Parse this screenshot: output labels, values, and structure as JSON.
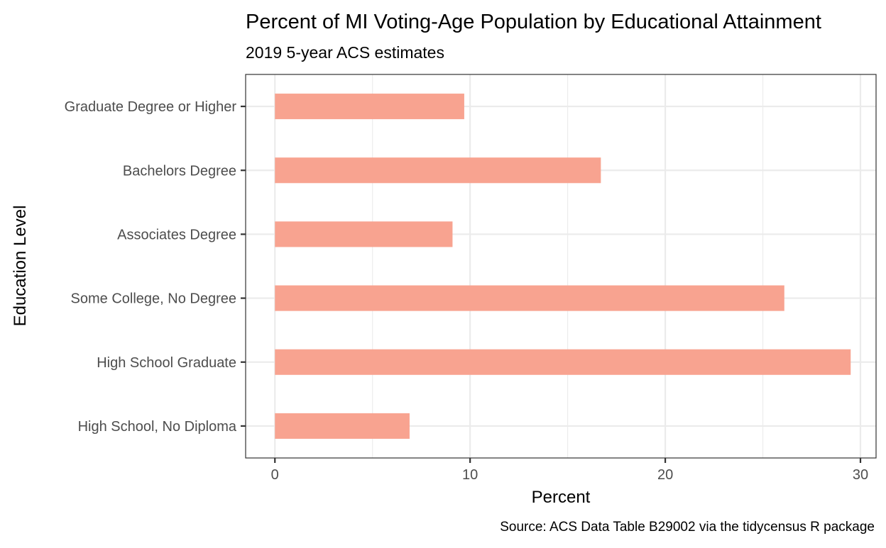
{
  "chart_data": {
    "type": "bar",
    "orientation": "horizontal",
    "title": "Percent of MI Voting-Age Population by Educational Attainment",
    "subtitle": "2019 5-year ACS estimates",
    "xlabel": "Percent",
    "ylabel": "Education Level",
    "caption": "Source: ACS Data Table B29002 via the tidycensus R package",
    "categories": [
      "High School, No Diploma",
      "High School Graduate",
      "Some College, No Degree",
      "Associates Degree",
      "Bachelors Degree",
      "Graduate Degree or Higher"
    ],
    "values": [
      6.9,
      29.5,
      26.1,
      9.1,
      16.7,
      9.7
    ],
    "xlim": [
      -1.5,
      30.8
    ],
    "x_ticks": [
      0,
      10,
      20,
      30
    ],
    "x_minor_ticks": [
      5,
      15,
      25
    ],
    "bar_color": "#f8a390",
    "grid": true,
    "legend": "none",
    "theme": "bw"
  }
}
